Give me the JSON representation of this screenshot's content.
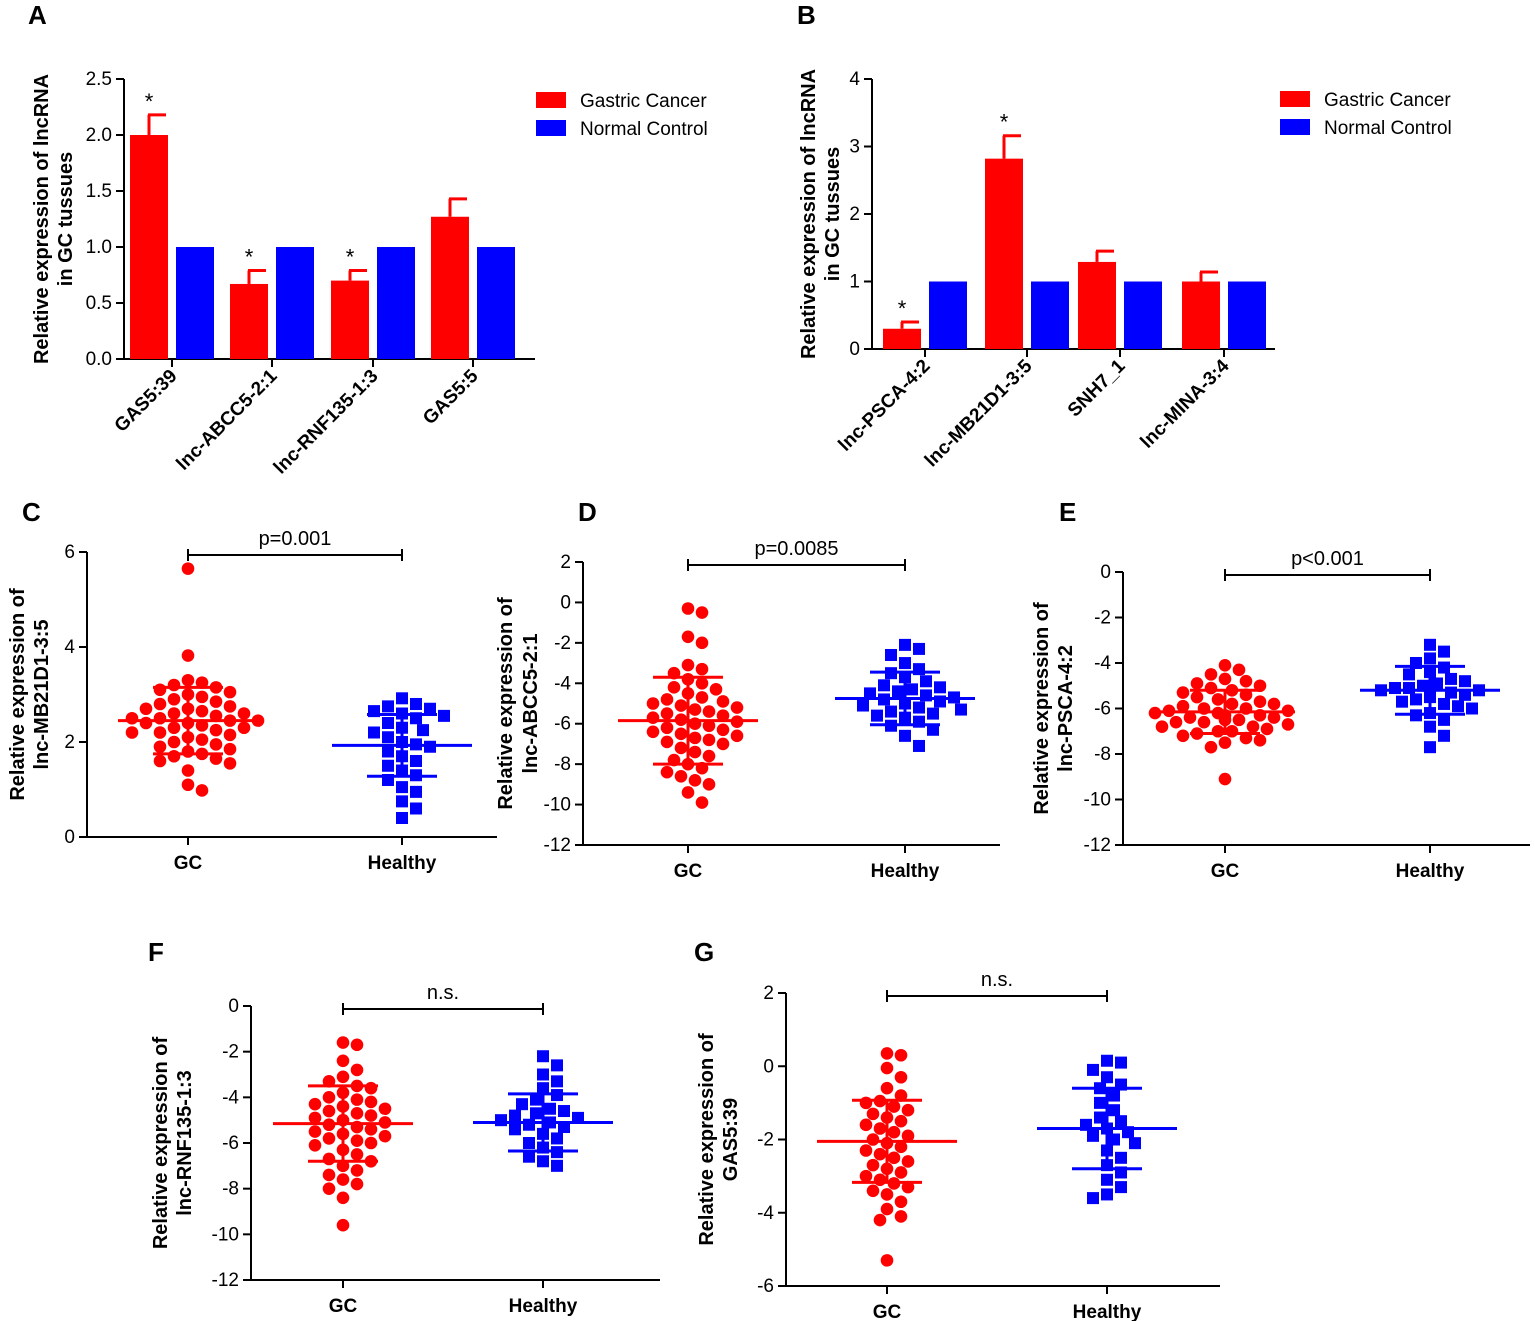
{
  "colors": {
    "gc": "#ff0000",
    "healthy": "#0000ff",
    "axis": "#000000"
  },
  "chart_data": [
    {
      "id": "A",
      "letter": "A",
      "type": "bar",
      "ylabel": [
        "Relative expression of lncRNA",
        "in GC tussues"
      ],
      "ylim": [
        0,
        2.5
      ],
      "yticks": [
        "0.0",
        "0.5",
        "1.0",
        "1.5",
        "2.0",
        "2.5"
      ],
      "categories": [
        "GAS5:39",
        "lnc-ABCC5-2:1",
        "lnc-RNF135-1:3",
        "GAS5:5"
      ],
      "legend": [
        "Gastric Cancer",
        "Normal Control"
      ],
      "series": [
        {
          "name": "Gastric Cancer",
          "values": [
            2.0,
            0.67,
            0.7,
            1.27
          ],
          "errors": [
            0.18,
            0.12,
            0.09,
            0.16
          ],
          "sig": [
            "*",
            "*",
            "*",
            ""
          ]
        },
        {
          "name": "Normal Control",
          "values": [
            1.0,
            1.0,
            1.0,
            1.0
          ]
        }
      ]
    },
    {
      "id": "B",
      "letter": "B",
      "type": "bar",
      "ylabel": [
        "Relative expression of lncRNA",
        "in GC tussues"
      ],
      "ylim": [
        0,
        4
      ],
      "yticks": [
        "0",
        "1",
        "2",
        "3",
        "4"
      ],
      "categories": [
        "lnc-PSCA-4:2",
        "lnc-MB21D1-3:5",
        "SNH7_1",
        "lnc-MINA-3:4"
      ],
      "legend": [
        "Gastric Cancer",
        "Normal Control"
      ],
      "series": [
        {
          "name": "Gastric Cancer",
          "values": [
            0.3,
            2.82,
            1.29,
            1.0
          ],
          "errors": [
            0.1,
            0.34,
            0.16,
            0.14
          ],
          "sig": [
            "*",
            "*",
            "",
            ""
          ]
        },
        {
          "name": "Normal Control",
          "values": [
            1.0,
            1.0,
            1.0,
            1.0
          ]
        }
      ]
    },
    {
      "id": "C",
      "letter": "C",
      "type": "scatter",
      "ylabel": [
        "Relative expression of",
        "lnc-MB21D1-3:5"
      ],
      "ylim": [
        0,
        6
      ],
      "yticks": [
        "0",
        "2",
        "4",
        "6"
      ],
      "categories": [
        "GC",
        "Healthy"
      ],
      "stat": "p=0.001",
      "series": [
        {
          "name": "GC",
          "mean": 2.45,
          "sd": 0.7,
          "values": [
            5.65,
            3.82,
            3.3,
            3.25,
            3.2,
            3.15,
            3.1,
            3.05,
            3.0,
            2.95,
            2.9,
            2.85,
            2.8,
            2.75,
            2.7,
            2.7,
            2.65,
            2.6,
            2.6,
            2.55,
            2.5,
            2.5,
            2.45,
            2.45,
            2.4,
            2.4,
            2.35,
            2.3,
            2.3,
            2.25,
            2.2,
            2.2,
            2.15,
            2.1,
            2.05,
            2.0,
            1.95,
            1.9,
            1.85,
            1.8,
            1.75,
            1.7,
            1.65,
            1.6,
            1.55,
            1.4,
            1.1,
            0.98
          ]
        },
        {
          "name": "Healthy",
          "mean": 1.93,
          "sd": 0.65,
          "values": [
            2.92,
            2.8,
            2.75,
            2.7,
            2.65,
            2.6,
            2.55,
            2.5,
            2.4,
            2.3,
            2.25,
            2.2,
            2.1,
            2.0,
            1.95,
            1.9,
            1.8,
            1.7,
            1.6,
            1.5,
            1.4,
            1.3,
            1.2,
            1.05,
            0.95,
            0.75,
            0.6,
            0.4
          ]
        }
      ]
    },
    {
      "id": "D",
      "letter": "D",
      "type": "scatter",
      "ylabel": [
        "Relative expression of",
        "lnc-ABCC5-2:1"
      ],
      "ylim": [
        -12,
        2
      ],
      "yticks": [
        "-12",
        "-10",
        "-8",
        "-6",
        "-4",
        "-2",
        "0",
        "2"
      ],
      "categories": [
        "GC",
        "Healthy"
      ],
      "stat": "p=0.0085",
      "series": [
        {
          "name": "GC",
          "mean": -5.85,
          "sd": 2.15,
          "values": [
            -0.3,
            -0.5,
            -1.7,
            -2.0,
            -3.1,
            -3.3,
            -3.5,
            -3.8,
            -4.0,
            -4.2,
            -4.3,
            -4.5,
            -4.7,
            -4.8,
            -4.9,
            -5.0,
            -5.1,
            -5.2,
            -5.3,
            -5.4,
            -5.5,
            -5.6,
            -5.7,
            -5.8,
            -5.9,
            -6.0,
            -6.1,
            -6.2,
            -6.3,
            -6.4,
            -6.5,
            -6.6,
            -6.7,
            -6.8,
            -6.9,
            -7.0,
            -7.2,
            -7.4,
            -7.6,
            -7.8,
            -8.0,
            -8.2,
            -8.4,
            -8.6,
            -8.8,
            -9.0,
            -9.4,
            -9.9
          ]
        },
        {
          "name": "Healthy",
          "mean": -4.75,
          "sd": 1.3,
          "values": [
            -2.1,
            -2.3,
            -2.6,
            -3.0,
            -3.3,
            -3.5,
            -3.7,
            -3.9,
            -4.1,
            -4.2,
            -4.3,
            -4.4,
            -4.5,
            -4.6,
            -4.7,
            -4.8,
            -4.9,
            -5.0,
            -5.1,
            -5.2,
            -5.3,
            -5.4,
            -5.5,
            -5.6,
            -5.7,
            -5.9,
            -6.1,
            -6.3,
            -6.6,
            -7.1
          ]
        }
      ]
    },
    {
      "id": "E",
      "letter": "E",
      "type": "scatter",
      "ylabel": [
        "Relative expression of",
        "lnc-PSCA-4:2"
      ],
      "ylim": [
        -12,
        0
      ],
      "yticks": [
        "-12",
        "-10",
        "-8",
        "-6",
        "-4",
        "-2",
        "0"
      ],
      "categories": [
        "GC",
        "Healthy"
      ],
      "stat": "p<0.001",
      "series": [
        {
          "name": "GC",
          "mean": -6.15,
          "sd": 0.95,
          "values": [
            -4.1,
            -4.3,
            -4.5,
            -4.7,
            -4.8,
            -4.9,
            -5.0,
            -5.1,
            -5.2,
            -5.3,
            -5.4,
            -5.5,
            -5.6,
            -5.7,
            -5.8,
            -5.8,
            -5.9,
            -6.0,
            -6.0,
            -6.1,
            -6.1,
            -6.2,
            -6.2,
            -6.3,
            -6.3,
            -6.4,
            -6.4,
            -6.5,
            -6.5,
            -6.6,
            -6.6,
            -6.7,
            -6.8,
            -6.8,
            -6.9,
            -7.0,
            -7.0,
            -7.1,
            -7.2,
            -7.3,
            -7.4,
            -7.5,
            -7.7,
            -9.1
          ]
        },
        {
          "name": "Healthy",
          "mean": -5.2,
          "sd": 1.05,
          "values": [
            -3.2,
            -3.5,
            -3.8,
            -4.0,
            -4.2,
            -4.4,
            -4.5,
            -4.7,
            -4.8,
            -4.9,
            -5.0,
            -5.1,
            -5.1,
            -5.2,
            -5.2,
            -5.3,
            -5.4,
            -5.5,
            -5.6,
            -5.7,
            -5.8,
            -5.9,
            -6.0,
            -6.2,
            -6.3,
            -6.5,
            -6.8,
            -7.2,
            -7.7
          ]
        }
      ]
    },
    {
      "id": "F",
      "letter": "F",
      "type": "scatter",
      "ylabel": [
        "Relative expression of",
        "lnc-RNF135-1:3"
      ],
      "ylim": [
        -12,
        0
      ],
      "yticks": [
        "-12",
        "-10",
        "-8",
        "-6",
        "-4",
        "-2",
        "0"
      ],
      "categories": [
        "GC",
        "Healthy"
      ],
      "stat": "n.s.",
      "series": [
        {
          "name": "GC",
          "mean": -5.15,
          "sd": 1.65,
          "values": [
            -1.6,
            -1.7,
            -2.4,
            -2.8,
            -3.1,
            -3.3,
            -3.5,
            -3.6,
            -3.8,
            -4.0,
            -4.1,
            -4.2,
            -4.3,
            -4.4,
            -4.5,
            -4.6,
            -4.7,
            -4.8,
            -4.9,
            -5.0,
            -5.1,
            -5.2,
            -5.3,
            -5.4,
            -5.5,
            -5.6,
            -5.7,
            -5.8,
            -5.9,
            -6.0,
            -6.1,
            -6.3,
            -6.5,
            -6.7,
            -6.8,
            -7.0,
            -7.2,
            -7.4,
            -7.6,
            -7.8,
            -8.0,
            -8.4,
            -9.6
          ]
        },
        {
          "name": "Healthy",
          "mean": -5.1,
          "sd": 1.25,
          "values": [
            -2.2,
            -2.6,
            -3.0,
            -3.3,
            -3.6,
            -3.9,
            -4.1,
            -4.3,
            -4.5,
            -4.6,
            -4.7,
            -4.8,
            -4.9,
            -5.0,
            -5.1,
            -5.2,
            -5.3,
            -5.4,
            -5.6,
            -5.8,
            -6.0,
            -6.2,
            -6.4,
            -6.6,
            -6.8,
            -7.0
          ]
        }
      ]
    },
    {
      "id": "G",
      "letter": "G",
      "type": "scatter",
      "ylabel": [
        "Relative expression of",
        "GAS5:39"
      ],
      "ylim": [
        -6,
        2
      ],
      "yticks": [
        "-6",
        "-4",
        "-2",
        "0",
        "2"
      ],
      "categories": [
        "GC",
        "Healthy"
      ],
      "stat": "n.s.",
      "series": [
        {
          "name": "GC",
          "mean": -2.05,
          "sd": 1.12,
          "values": [
            0.35,
            0.3,
            -0.05,
            -0.3,
            -0.6,
            -0.8,
            -0.95,
            -1.0,
            -1.1,
            -1.2,
            -1.3,
            -1.4,
            -1.5,
            -1.6,
            -1.7,
            -1.8,
            -1.9,
            -2.0,
            -2.1,
            -2.2,
            -2.3,
            -2.4,
            -2.5,
            -2.6,
            -2.7,
            -2.8,
            -2.9,
            -3.0,
            -3.1,
            -3.2,
            -3.3,
            -3.4,
            -3.5,
            -3.7,
            -3.9,
            -4.1,
            -4.2,
            -5.3
          ]
        },
        {
          "name": "Healthy",
          "mean": -1.7,
          "sd": 1.1,
          "values": [
            0.15,
            0.1,
            -0.1,
            -0.3,
            -0.5,
            -0.6,
            -0.8,
            -1.0,
            -1.2,
            -1.4,
            -1.5,
            -1.6,
            -1.7,
            -1.8,
            -1.9,
            -2.0,
            -2.1,
            -2.3,
            -2.5,
            -2.7,
            -2.9,
            -3.1,
            -3.3,
            -3.5,
            -3.6
          ]
        }
      ]
    }
  ]
}
